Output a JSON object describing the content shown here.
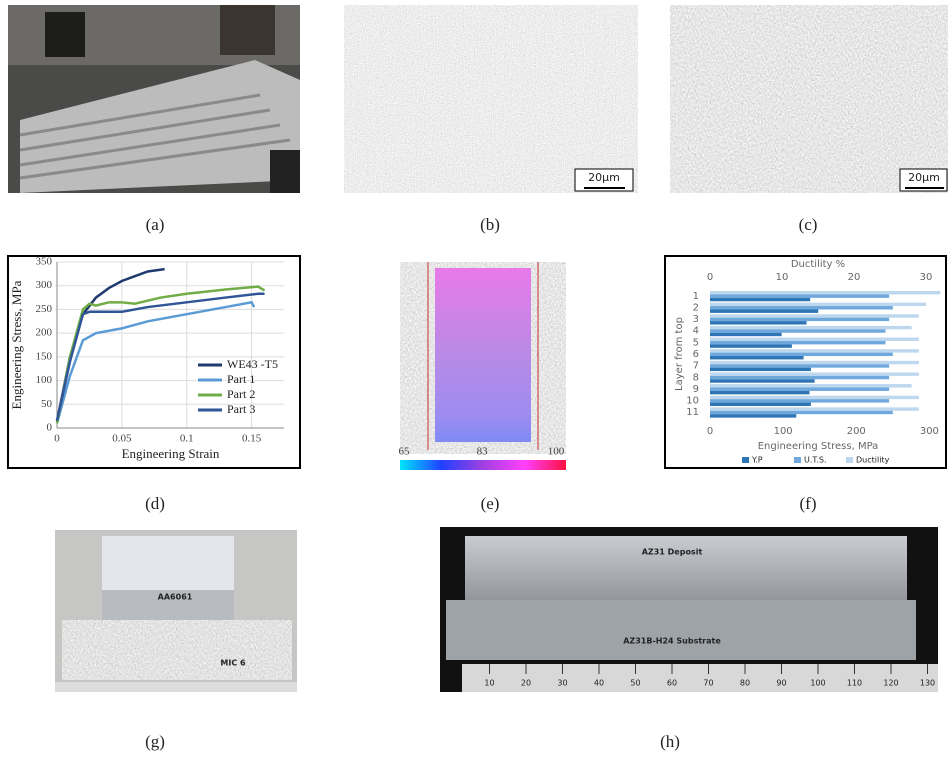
{
  "captions": [
    "(a)",
    "(b)",
    "(c)",
    "(d)",
    "(e)",
    "(f)",
    "(g)",
    "(h)"
  ],
  "scale_bars": [
    "20μm",
    "20μm"
  ],
  "colorbar": {
    "ticks": [
      65,
      83,
      100
    ],
    "range": [
      65,
      100
    ]
  },
  "photo_labels": {
    "g_top": "AA6061",
    "g_bottom": "MIC 6",
    "h_top": "AZ31 Deposit",
    "h_bottom": "AZ31B-H24 Substrate"
  },
  "ruler": {
    "ticks": [
      10,
      20,
      30,
      40,
      50,
      60,
      70,
      80,
      90,
      100,
      110,
      120,
      130
    ]
  },
  "chart_data": [
    {
      "type": "line",
      "x_label": "Engineering Strain",
      "y_label": "Engineering Stress, MPa",
      "xlim": [
        0,
        0.175
      ],
      "xticks": [
        0,
        0.05,
        0.1,
        0.15
      ],
      "ylim": [
        0,
        350
      ],
      "yticks": [
        0,
        50,
        100,
        150,
        200,
        250,
        300,
        350
      ],
      "grid": true,
      "series": [
        {
          "name": "WE43 -T5",
          "color": "#1f3a6e",
          "x": [
            0,
            0.01,
            0.02,
            0.03,
            0.04,
            0.05,
            0.06,
            0.07,
            0.083
          ],
          "values": [
            15,
            150,
            240,
            275,
            295,
            310,
            320,
            330,
            335
          ]
        },
        {
          "name": "Part 1",
          "color": "#5b9bd5",
          "x": [
            0,
            0.01,
            0.02,
            0.03,
            0.04,
            0.05,
            0.07,
            0.1,
            0.13,
            0.15,
            0.152
          ],
          "values": [
            10,
            110,
            185,
            200,
            205,
            210,
            225,
            240,
            255,
            265,
            255
          ]
        },
        {
          "name": "Part 2",
          "color": "#70ad47",
          "x": [
            0,
            0.01,
            0.02,
            0.025,
            0.03,
            0.04,
            0.05,
            0.06,
            0.08,
            0.1,
            0.13,
            0.155,
            0.16
          ],
          "values": [
            10,
            150,
            250,
            262,
            258,
            265,
            265,
            262,
            275,
            283,
            292,
            298,
            290
          ]
        },
        {
          "name": "Part 3",
          "color": "#2f5597",
          "x": [
            0,
            0.01,
            0.02,
            0.025,
            0.03,
            0.05,
            0.07,
            0.1,
            0.13,
            0.155,
            0.16
          ],
          "values": [
            15,
            140,
            240,
            245,
            245,
            245,
            255,
            265,
            275,
            283,
            283
          ]
        }
      ]
    },
    {
      "type": "bar",
      "x_label": "Engineering Stress, MPa",
      "x2_label": "Ductility %",
      "y_label": "Layer from top",
      "categories": [
        "1",
        "2",
        "3",
        "4",
        "5",
        "6",
        "7",
        "8",
        "9",
        "10",
        "11"
      ],
      "xlim": [
        0,
        320
      ],
      "xticks": [
        0,
        100,
        200,
        300
      ],
      "x2lim": [
        0,
        32.5
      ],
      "x2ticks": [
        0,
        10,
        20,
        30
      ],
      "series": [
        {
          "name": "Y.P",
          "color": "#2e75b6",
          "values": [
            137,
            148,
            132,
            98,
            112,
            128,
            138,
            143,
            136,
            138,
            118
          ]
        },
        {
          "name": "U.T.S.",
          "color": "#6fa8dc",
          "values": [
            245,
            250,
            245,
            240,
            240,
            250,
            245,
            245,
            245,
            245,
            250
          ]
        },
        {
          "name": "Ductility",
          "color": "#bdd7ee",
          "axis": "x2",
          "values": [
            32,
            30,
            29,
            28,
            29,
            29,
            29,
            29,
            28,
            29,
            29
          ]
        }
      ]
    }
  ]
}
